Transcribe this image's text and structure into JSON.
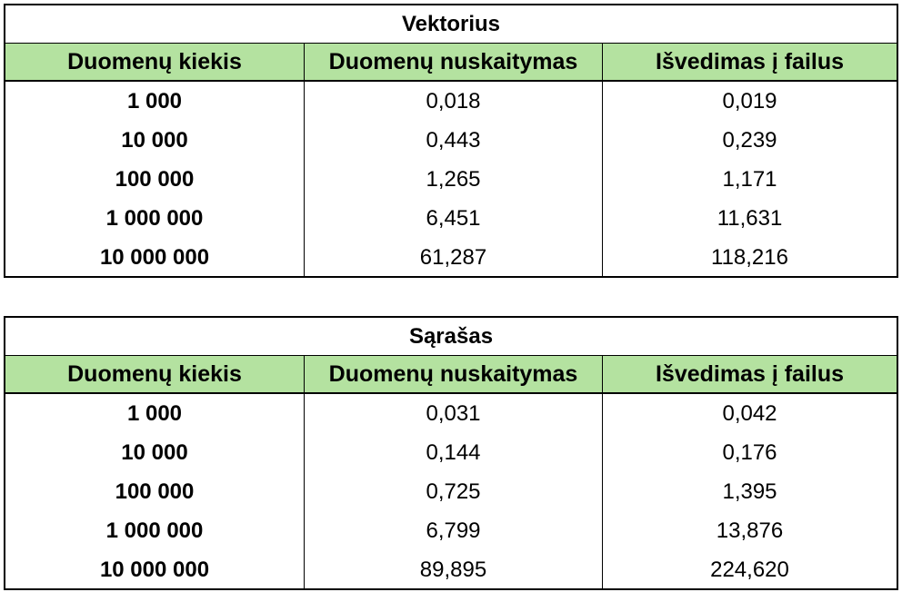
{
  "tables": [
    {
      "title": "Vektorius",
      "headers": [
        "Duomenų kiekis",
        "Duomenų nuskaitymas",
        "Išvedimas į failus"
      ],
      "rows": [
        [
          "1 000",
          "0,018",
          "0,019"
        ],
        [
          "10 000",
          "0,443",
          "0,239"
        ],
        [
          "100 000",
          "1,265",
          "1,171"
        ],
        [
          "1 000 000",
          "6,451",
          "11,631"
        ],
        [
          "10 000 000",
          "61,287",
          "118,216"
        ]
      ]
    },
    {
      "title": "Sąrašas",
      "headers": [
        "Duomenų kiekis",
        "Duomenų nuskaitymas",
        "Išvedimas į failus"
      ],
      "rows": [
        [
          "1 000",
          "0,031",
          "0,042"
        ],
        [
          "10 000",
          "0,144",
          "0,176"
        ],
        [
          "100 000",
          "0,725",
          "1,395"
        ],
        [
          "1 000 000",
          "6,799",
          "13,876"
        ],
        [
          "10 000 000",
          "89,895",
          "224,620"
        ]
      ]
    }
  ],
  "colors": {
    "header_background": "#b4e2a0",
    "border": "#000000"
  }
}
